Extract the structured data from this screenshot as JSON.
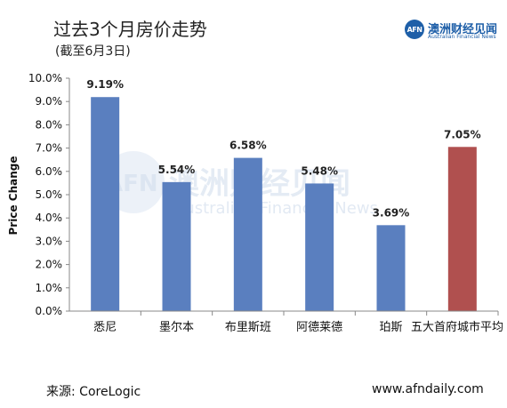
{
  "header": {
    "title": "过去3个月房价走势",
    "subtitle": "(截至6月3日)"
  },
  "logo": {
    "mark": "AFN",
    "name_cn": "澳洲财经见闻",
    "name_en": "Australian Financial News"
  },
  "watermark": {
    "mark": "AFN",
    "cn": "澳洲财经见闻",
    "en": "Australian Financial News"
  },
  "footer": {
    "source": "来源: CoreLogic",
    "website": "www.afndaily.com"
  },
  "colors": {
    "bar": "#5a7fbf",
    "highlight": "#b0504f",
    "axis": "#888888"
  },
  "chart_data": {
    "type": "bar",
    "ylabel": "Price Change",
    "ylim": [
      0,
      10
    ],
    "yticks": [
      "0.0%",
      "1.0%",
      "2.0%",
      "3.0%",
      "4.0%",
      "5.0%",
      "6.0%",
      "7.0%",
      "8.0%",
      "9.0%",
      "10.0%"
    ],
    "grid": false,
    "categories": [
      "悉尼",
      "墨尔本",
      "布里斯班",
      "阿德莱德",
      "珀斯",
      "五大首府城市平均"
    ],
    "values": [
      9.19,
      5.54,
      6.58,
      5.48,
      3.69,
      7.05
    ],
    "data_labels": [
      "9.19%",
      "5.54%",
      "6.58%",
      "5.48%",
      "3.69%",
      "7.05%"
    ],
    "highlight_index": 5
  }
}
